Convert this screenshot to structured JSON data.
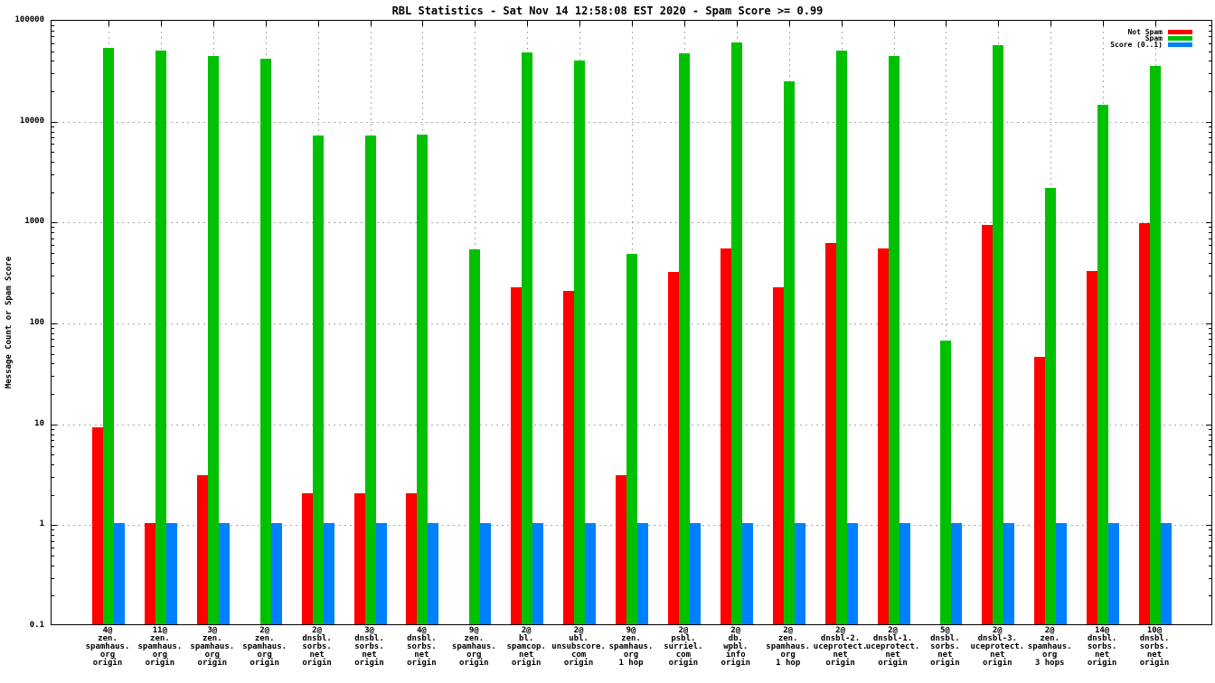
{
  "title": "RBL Statistics - Sat Nov 14 12:58:08 EST 2020 - Spam Score >= 0.99",
  "chart_data": {
    "type": "bar",
    "title": "RBL Statistics - Sat Nov 14 12:58:08 EST 2020 - Spam Score >= 0.99",
    "xlabel": "",
    "ylabel": "Message Count or Spam Score",
    "y_scale": "log10",
    "ylim": [
      0.1,
      100000
    ],
    "ytick_labels": [
      "100000",
      "10000",
      "1000",
      "100",
      "10",
      "1",
      "0.1"
    ],
    "grid": true,
    "legend_position": "top-right",
    "legend": [
      {
        "label": "Not Spam",
        "color": "#ff0000"
      },
      {
        "label": "Spam",
        "color": "#00c000"
      },
      {
        "label": "Score (0..1)",
        "color": "#0080ff"
      }
    ],
    "categories": [
      [
        "4@",
        "zen.",
        "spamhaus.",
        "org",
        "origin"
      ],
      [
        "11@",
        "zen.",
        "spamhaus.",
        "org",
        "origin"
      ],
      [
        "3@",
        "zen.",
        "spamhaus.",
        "org",
        "origin"
      ],
      [
        "2@",
        "zen.",
        "spamhaus.",
        "org",
        "origin"
      ],
      [
        "2@",
        "dnsbl.",
        "sorbs.",
        "net",
        "origin"
      ],
      [
        "3@",
        "dnsbl.",
        "sorbs.",
        "net",
        "origin"
      ],
      [
        "4@",
        "dnsbl.",
        "sorbs.",
        "net",
        "origin"
      ],
      [
        "9@",
        "zen.",
        "spamhaus.",
        "org",
        "origin"
      ],
      [
        "2@",
        "bl.",
        "spamcop.",
        "net",
        "origin"
      ],
      [
        "2@",
        "ubl.",
        "unsubscore.",
        "com",
        "origin"
      ],
      [
        "9@",
        "zen.",
        "spamhaus.",
        "org",
        "1 hop"
      ],
      [
        "2@",
        "psbl.",
        "surriel.",
        "com",
        "origin"
      ],
      [
        "2@",
        "db.",
        "wpbl.",
        "info",
        "origin"
      ],
      [
        "2@",
        "zen.",
        "spamhaus.",
        "org",
        "1 hop"
      ],
      [
        "2@",
        "dnsbl-2.",
        "uceprotect.",
        "net",
        "origin"
      ],
      [
        "2@",
        "dnsbl-1.",
        "uceprotect.",
        "net",
        "origin"
      ],
      [
        "5@",
        "dnsbl.",
        "sorbs.",
        "net",
        "origin"
      ],
      [
        "2@",
        "dnsbl-3.",
        "uceprotect.",
        "net",
        "origin"
      ],
      [
        "2@",
        "zen.",
        "spamhaus.",
        "org",
        "3 hops"
      ],
      [
        "14@",
        "dnsbl.",
        "sorbs.",
        "net",
        "origin"
      ],
      [
        "10@",
        "dnsbl.",
        "sorbs.",
        "net",
        "origin"
      ]
    ],
    "series": [
      {
        "name": "Not Spam",
        "color": "#ff0000",
        "values": [
          9,
          1,
          3,
          0,
          2,
          2,
          2,
          0,
          220,
          200,
          3,
          310,
          530,
          220,
          600,
          530,
          0,
          900,
          45,
          320,
          950
        ]
      },
      {
        "name": "Spam",
        "color": "#00c000",
        "values": [
          52000,
          49000,
          43000,
          40000,
          7000,
          7000,
          7100,
          520,
          47000,
          39000,
          470,
          46000,
          58000,
          24000,
          49000,
          43000,
          65,
          55000,
          2100,
          14000,
          34000
        ]
      },
      {
        "name": "Score (0..1)",
        "color": "#0080ff",
        "values": [
          1,
          1,
          1,
          1,
          1,
          1,
          1,
          1,
          1,
          1,
          1,
          1,
          1,
          1,
          1,
          1,
          1,
          1,
          1,
          1,
          1
        ]
      }
    ]
  }
}
